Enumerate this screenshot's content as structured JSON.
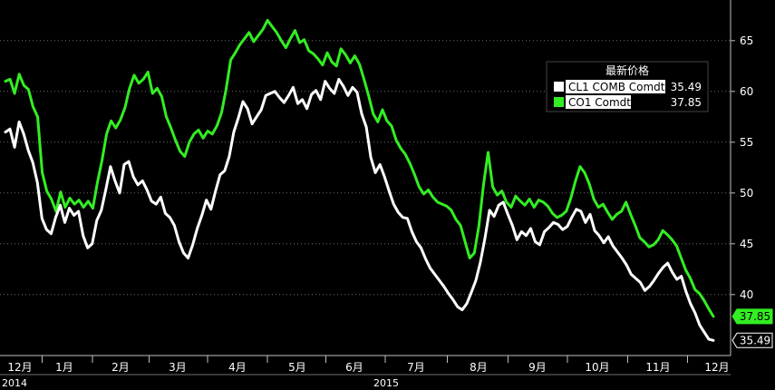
{
  "chart_data": {
    "type": "line",
    "title": "",
    "xlabel": "",
    "ylabel": "",
    "ylim": [
      34,
      69
    ],
    "yticks": [
      40,
      45,
      50,
      55,
      60,
      65
    ],
    "grid": true,
    "x_month_labels": [
      "12月",
      "1月",
      "2月",
      "3月",
      "4月",
      "5月",
      "6月",
      "7月",
      "8月",
      "9月",
      "10月",
      "11月",
      "12月"
    ],
    "x_year_labels": [
      "2014",
      "2015"
    ],
    "legend": {
      "title": "最新价格",
      "placement": "top-right"
    },
    "series": [
      {
        "name": "CL1 COMB Comdty",
        "last_value": "35.49",
        "color": "#ffffff",
        "values": [
          56.0,
          56.3,
          54.5,
          57.0,
          55.8,
          54.2,
          53.0,
          51.0,
          47.5,
          46.4,
          46.0,
          47.6,
          48.8,
          47.1,
          48.5,
          47.8,
          48.2,
          45.8,
          44.6,
          45.0,
          47.3,
          48.3,
          50.4,
          52.6,
          51.2,
          50.0,
          52.8,
          53.1,
          51.6,
          50.8,
          51.2,
          50.3,
          49.2,
          48.9,
          49.6,
          48.0,
          47.6,
          46.8,
          45.2,
          44.1,
          43.6,
          44.9,
          46.5,
          47.8,
          49.3,
          48.4,
          50.2,
          51.8,
          52.2,
          53.6,
          56.0,
          57.4,
          59.0,
          58.3,
          56.8,
          57.5,
          58.2,
          59.6,
          59.8,
          60.0,
          59.4,
          58.9,
          59.6,
          60.4,
          58.8,
          59.2,
          58.3,
          59.7,
          60.1,
          59.2,
          61.0,
          60.3,
          59.8,
          61.2,
          60.5,
          59.6,
          60.4,
          59.9,
          57.8,
          56.5,
          53.5,
          52.0,
          52.8,
          51.6,
          50.2,
          48.9,
          48.1,
          47.6,
          47.5,
          46.2,
          45.2,
          44.6,
          43.5,
          42.6,
          42.0,
          41.4,
          40.8,
          40.1,
          39.5,
          38.8,
          38.5,
          39.1,
          40.2,
          41.4,
          43.2,
          45.6,
          48.3,
          47.7,
          48.8,
          49.1,
          47.9,
          46.8,
          45.4,
          46.2,
          45.8,
          46.5,
          45.2,
          44.9,
          46.2,
          46.6,
          47.1,
          46.9,
          46.4,
          46.7,
          47.6,
          48.4,
          48.2,
          47.1,
          47.9,
          46.3,
          45.8,
          45.1,
          45.7,
          44.8,
          44.2,
          43.6,
          42.9,
          42.0,
          41.6,
          41.2,
          40.4,
          40.8,
          41.4,
          42.1,
          42.7,
          43.1,
          42.2,
          41.5,
          41.8,
          40.3,
          39.1,
          38.2,
          37.0,
          36.3,
          35.6,
          35.49
        ]
      },
      {
        "name": "CO1 Comdty",
        "last_value": "37.85",
        "color": "#33ee22",
        "values": [
          61.0,
          61.2,
          59.8,
          61.7,
          60.6,
          60.2,
          58.5,
          57.5,
          52.0,
          50.2,
          49.4,
          48.2,
          50.1,
          48.6,
          49.5,
          48.9,
          49.3,
          48.6,
          49.2,
          48.5,
          51.0,
          53.2,
          55.8,
          57.1,
          56.4,
          57.2,
          58.4,
          60.3,
          61.6,
          60.8,
          61.2,
          61.9,
          59.8,
          60.3,
          59.5,
          57.5,
          56.4,
          55.2,
          54.1,
          53.6,
          55.0,
          55.8,
          56.2,
          55.4,
          56.1,
          55.8,
          56.6,
          57.9,
          60.2,
          63.1,
          63.8,
          64.6,
          65.2,
          65.8,
          64.9,
          65.5,
          66.1,
          67.0,
          66.4,
          65.8,
          65.0,
          64.3,
          65.2,
          66.0,
          64.8,
          65.1,
          64.0,
          63.7,
          63.2,
          62.6,
          63.8,
          62.9,
          62.5,
          64.2,
          63.6,
          62.8,
          63.5,
          62.7,
          61.2,
          59.6,
          57.8,
          57.0,
          58.2,
          57.1,
          56.6,
          55.2,
          54.4,
          53.8,
          52.9,
          51.8,
          50.6,
          49.9,
          50.3,
          49.6,
          49.1,
          48.9,
          48.7,
          48.3,
          47.4,
          46.8,
          45.2,
          43.6,
          44.1,
          46.8,
          50.8,
          54.0,
          50.6,
          49.8,
          50.2,
          49.1,
          48.6,
          49.7,
          49.2,
          48.8,
          49.4,
          48.6,
          49.3,
          49.1,
          48.7,
          48.0,
          47.6,
          47.8,
          48.2,
          49.5,
          51.2,
          52.6,
          52.0,
          50.9,
          49.4,
          48.6,
          48.9,
          48.1,
          47.4,
          47.9,
          48.2,
          49.1,
          47.9,
          46.8,
          45.6,
          45.2,
          44.7,
          44.9,
          45.4,
          46.3,
          45.9,
          45.4,
          44.8,
          43.6,
          42.4,
          41.6,
          40.5,
          40.1,
          39.4,
          38.6,
          37.85
        ]
      }
    ]
  }
}
